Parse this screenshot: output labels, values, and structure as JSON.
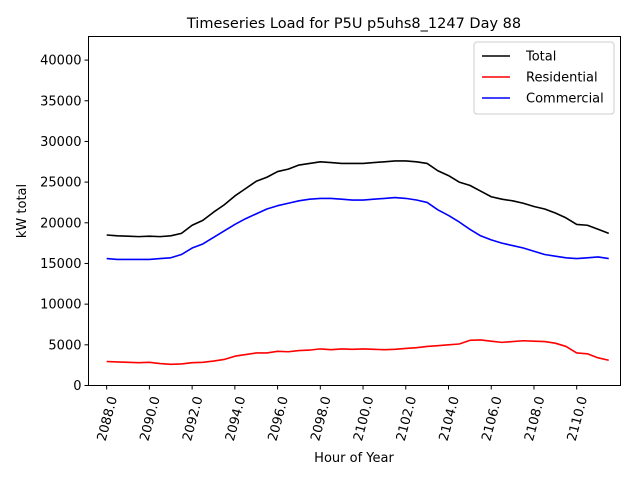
{
  "chart_data": {
    "type": "line",
    "title": "Timeseries Load for P5U p5uhs8_1247  Day 88",
    "xlabel": "Hour of Year",
    "ylabel": "kW total",
    "xlim": [
      2087.15,
      2112.05
    ],
    "ylim": [
      0,
      42900
    ],
    "xticks": [
      2088,
      2090,
      2092,
      2094,
      2096,
      2098,
      2100,
      2102,
      2104,
      2106,
      2108,
      2110
    ],
    "xtick_labels": [
      "2088.0",
      "2090.0",
      "2092.0",
      "2094.0",
      "2096.0",
      "2098.0",
      "2100.0",
      "2102.0",
      "2104.0",
      "2106.0",
      "2108.0",
      "2110.0"
    ],
    "yticks": [
      0,
      5000,
      10000,
      15000,
      20000,
      25000,
      30000,
      35000,
      40000
    ],
    "ytick_labels": [
      "0",
      "5000",
      "10000",
      "15000",
      "20000",
      "25000",
      "30000",
      "35000",
      "40000"
    ],
    "legend_position": "upper-right",
    "x": [
      2088.0,
      2088.5,
      2089.0,
      2089.5,
      2090.0,
      2090.5,
      2091.0,
      2091.5,
      2092.0,
      2092.5,
      2093.0,
      2093.5,
      2094.0,
      2094.5,
      2095.0,
      2095.5,
      2096.0,
      2096.5,
      2097.0,
      2097.5,
      2098.0,
      2098.5,
      2099.0,
      2099.5,
      2100.0,
      2100.5,
      2101.0,
      2101.5,
      2102.0,
      2102.5,
      2103.0,
      2103.5,
      2104.0,
      2104.5,
      2105.0,
      2105.5,
      2106.0,
      2106.5,
      2107.0,
      2107.5,
      2108.0,
      2108.5,
      2109.0,
      2109.5,
      2110.0,
      2110.5,
      2111.0,
      2111.5
    ],
    "series": [
      {
        "name": "Total",
        "color": "#000000",
        "values": [
          18500,
          18400,
          18350,
          18300,
          18350,
          18300,
          18400,
          18700,
          19700,
          20300,
          21300,
          22200,
          23300,
          24200,
          25100,
          25600,
          26300,
          26600,
          27100,
          27300,
          27500,
          27400,
          27300,
          27300,
          27300,
          27400,
          27500,
          27600,
          27600,
          27500,
          27300,
          26400,
          25800,
          25000,
          24600,
          23900,
          23200,
          22900,
          22700,
          22400,
          22000,
          21700,
          21200,
          20600,
          19800,
          19700,
          19200,
          18700
        ]
      },
      {
        "name": "Residential",
        "color": "#ff0000",
        "values": [
          2950,
          2900,
          2850,
          2800,
          2850,
          2700,
          2600,
          2650,
          2800,
          2850,
          3000,
          3200,
          3600,
          3800,
          4000,
          4000,
          4200,
          4150,
          4300,
          4350,
          4500,
          4400,
          4500,
          4450,
          4500,
          4450,
          4400,
          4450,
          4550,
          4650,
          4800,
          4900,
          5000,
          5100,
          5550,
          5600,
          5450,
          5300,
          5400,
          5500,
          5450,
          5400,
          5200,
          4800,
          4000,
          3900,
          3400,
          3100
        ]
      },
      {
        "name": "Commercial",
        "color": "#0000ff",
        "values": [
          15600,
          15500,
          15500,
          15500,
          15500,
          15600,
          15700,
          16100,
          16900,
          17400,
          18200,
          19000,
          19800,
          20500,
          21100,
          21700,
          22100,
          22400,
          22700,
          22900,
          23000,
          23000,
          22900,
          22800,
          22800,
          22900,
          23000,
          23100,
          23000,
          22800,
          22500,
          21600,
          20900,
          20100,
          19200,
          18400,
          17900,
          17500,
          17200,
          16900,
          16500,
          16100,
          15900,
          15700,
          15600,
          15700,
          15800,
          15600
        ]
      }
    ]
  }
}
